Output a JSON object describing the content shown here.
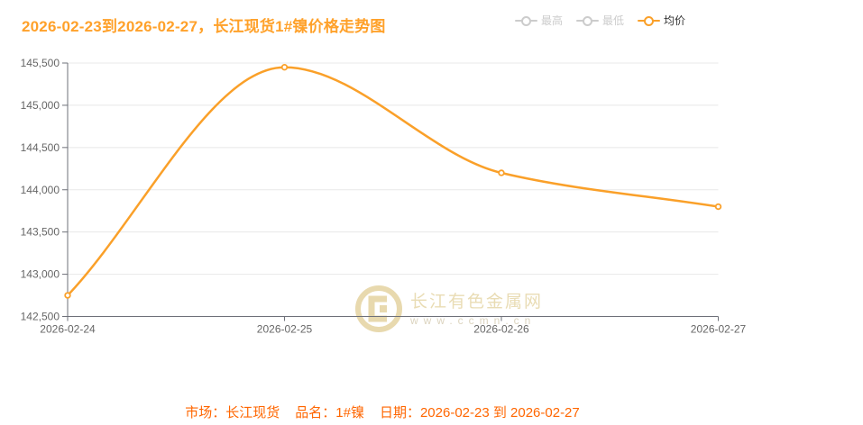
{
  "header": {
    "title": "2026-02-23到2026-02-27，长江现货1#镍价格走势图"
  },
  "legend": {
    "items": [
      {
        "label": "最高",
        "enabled": false
      },
      {
        "label": "最低",
        "enabled": false
      },
      {
        "label": "均价",
        "enabled": true
      }
    ]
  },
  "chart_data": {
    "type": "line",
    "title": "2026-02-23到2026-02-27，长江现货1#镍价格走势图",
    "categories": [
      "2026-02-24",
      "2026-02-25",
      "2026-02-26",
      "2026-02-27"
    ],
    "series": [
      {
        "name": "均价",
        "values": [
          142750,
          145450,
          144200,
          143800
        ],
        "smooth": true,
        "marker": "empty-circle"
      }
    ],
    "hidden_series": [
      "最高",
      "最低"
    ],
    "xlabel": "",
    "ylabel": "",
    "ylim": [
      142500,
      145500
    ],
    "ytick_step": 500,
    "grid": true,
    "legend_position": "top-right"
  },
  "watermark": {
    "brand": "长江有色金属网",
    "url": "www.ccmn.cn"
  },
  "caption": {
    "market": "市场：长江现货",
    "product": "品名：1#镍",
    "date": "日期：2026-02-23 到 2026-02-27"
  },
  "colors": {
    "accent": "#faa029",
    "title": "#ffa12a",
    "caption": "#ff6600",
    "legend_disabled": "#cccccc",
    "grid_line": "#e8e8e8",
    "axis_line": "#6e7079",
    "tick_label": "#666666",
    "watermark": "#e9dcb4"
  }
}
